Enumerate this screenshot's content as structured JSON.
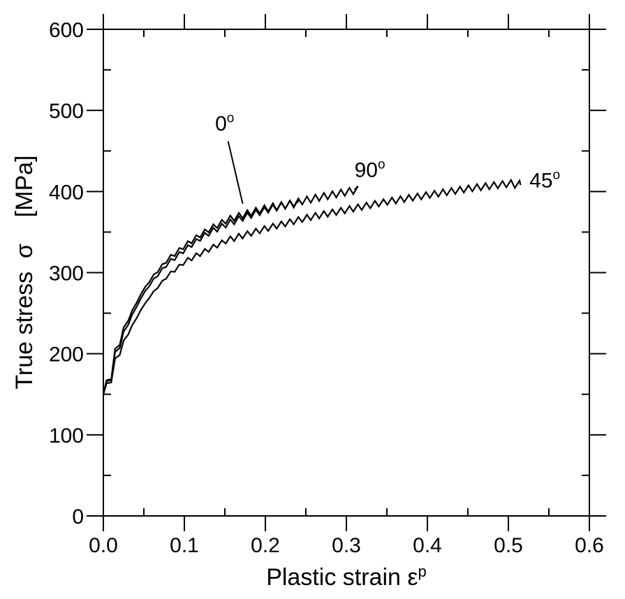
{
  "chart_data": {
    "type": "line",
    "title": "",
    "xlabel": "Plastic strain ε",
    "xlabel_sup": "p",
    "ylabel": "True stress  σ    [MPa]",
    "xlim": [
      0.0,
      0.6
    ],
    "ylim": [
      0,
      600
    ],
    "x_major_ticks": [
      0.0,
      0.1,
      0.2,
      0.3,
      0.4,
      0.5,
      0.6
    ],
    "x_tick_labels": [
      "0.0",
      "0.1",
      "0.2",
      "0.3",
      "0.4",
      "0.5",
      "0.6"
    ],
    "x_minor_step": 0.05,
    "y_major_ticks": [
      0,
      100,
      200,
      300,
      400,
      500,
      600
    ],
    "y_tick_labels": [
      "0",
      "100",
      "200",
      "300",
      "400",
      "500",
      "600"
    ],
    "y_minor_step": 50,
    "grid": false,
    "legend": "none (inline annotations)",
    "series": [
      {
        "name": "0°",
        "x": [
          0.0,
          0.01,
          0.02,
          0.03,
          0.05,
          0.075,
          0.1,
          0.125,
          0.15,
          0.175,
          0.2,
          0.22,
          0.24
        ],
        "y": [
          150,
          195,
          225,
          248,
          285,
          315,
          335,
          352,
          365,
          373,
          380,
          383,
          386
        ],
        "serration_amplitude": 10
      },
      {
        "name": "90°",
        "x": [
          0.0,
          0.01,
          0.02,
          0.03,
          0.05,
          0.075,
          0.1,
          0.125,
          0.15,
          0.175,
          0.2,
          0.25,
          0.3,
          0.31
        ],
        "y": [
          150,
          192,
          220,
          243,
          280,
          310,
          330,
          348,
          360,
          370,
          378,
          390,
          400,
          402
        ],
        "serration_amplitude": 10
      },
      {
        "name": "45°",
        "x": [
          0.0,
          0.01,
          0.02,
          0.03,
          0.05,
          0.075,
          0.1,
          0.15,
          0.2,
          0.25,
          0.3,
          0.35,
          0.4,
          0.45,
          0.5,
          0.515
        ],
        "y": [
          150,
          185,
          210,
          230,
          265,
          295,
          315,
          340,
          355,
          368,
          378,
          388,
          396,
          404,
          410,
          408
        ],
        "serration_amplitude": 9
      }
    ],
    "annotations": [
      {
        "text": "0",
        "sup": "o",
        "x": 0.138,
        "y": 475,
        "pointer_from": [
          0.154,
          462
        ],
        "pointer_to": [
          0.172,
          385
        ]
      },
      {
        "text": "90",
        "sup": "o",
        "x": 0.31,
        "y": 418
      },
      {
        "text": "45",
        "sup": "o",
        "x": 0.526,
        "y": 405
      }
    ]
  }
}
